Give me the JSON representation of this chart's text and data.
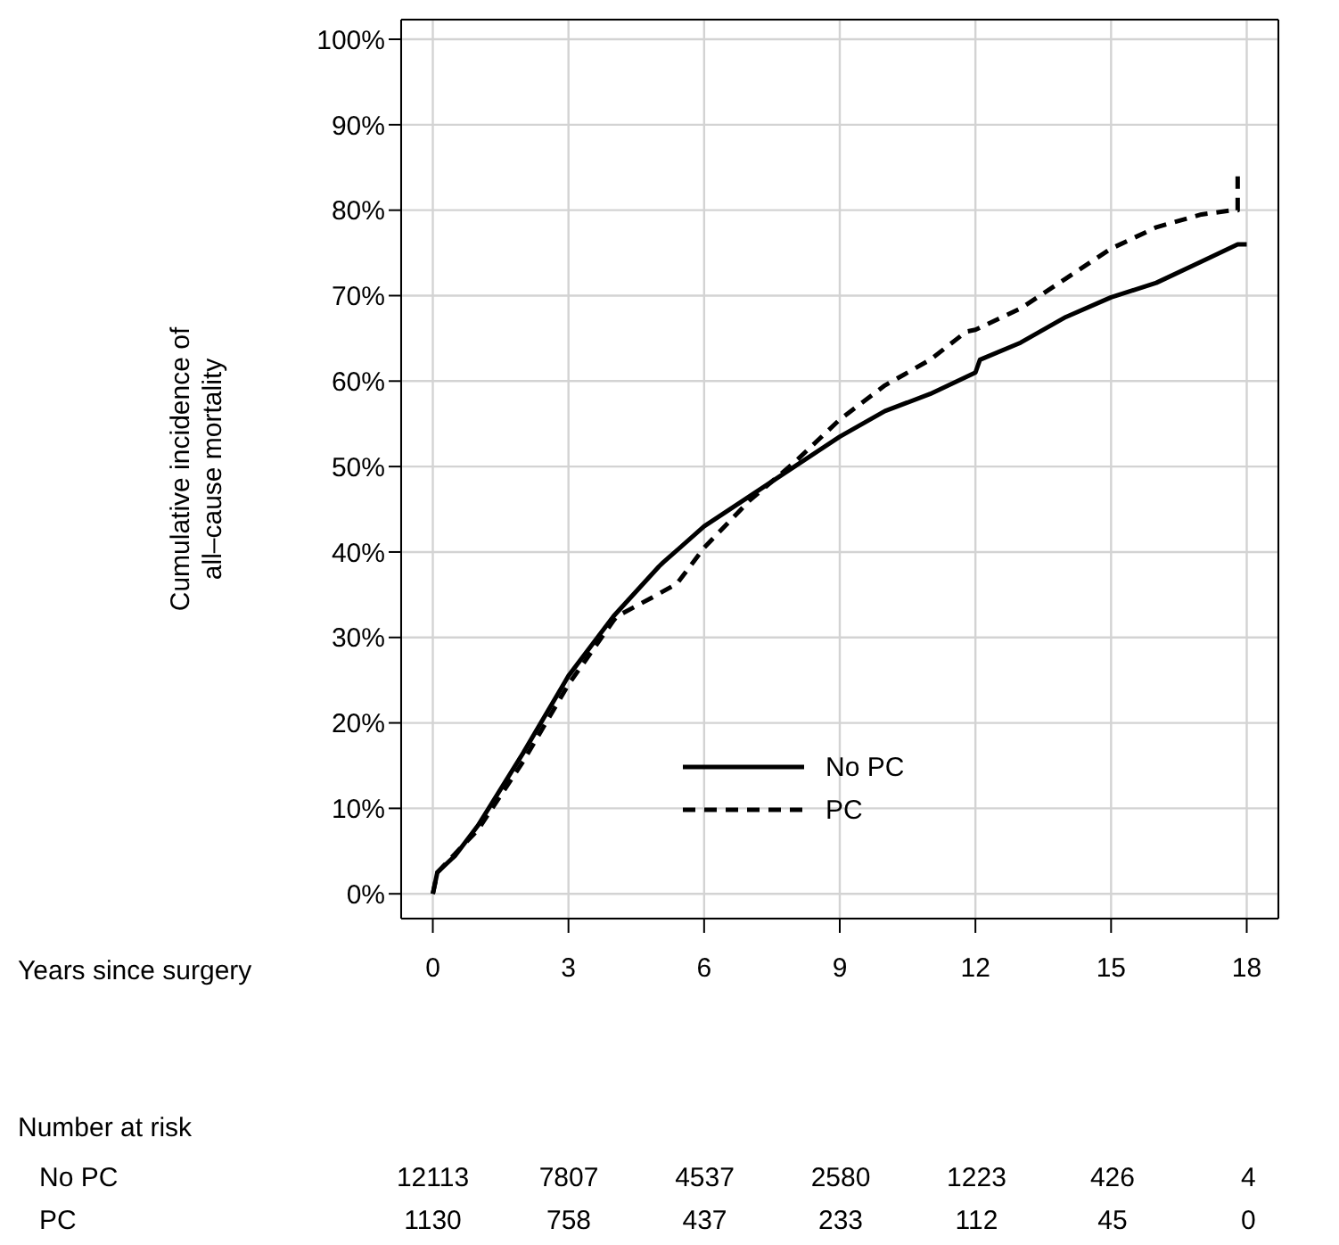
{
  "chart_data": {
    "type": "line",
    "xlabel": "Years since surgery",
    "ylabel": "Cumulative incidence of\nall–cause mortality",
    "xlim": [
      -0.7,
      18.7
    ],
    "xticks": [
      0,
      3,
      6,
      9,
      12,
      15,
      18
    ],
    "ylim": [
      -2.9,
      102.3
    ],
    "yticks": [
      {
        "value": 0,
        "label": "0%"
      },
      {
        "value": 10,
        "label": "10%"
      },
      {
        "value": 20,
        "label": "20%"
      },
      {
        "value": 30,
        "label": "30%"
      },
      {
        "value": 40,
        "label": "40%"
      },
      {
        "value": 50,
        "label": "50%"
      },
      {
        "value": 60,
        "label": "60%"
      },
      {
        "value": 70,
        "label": "70%"
      },
      {
        "value": 80,
        "label": "80%"
      },
      {
        "value": 90,
        "label": "90%"
      },
      {
        "value": 100,
        "label": "100%"
      }
    ],
    "grid": true,
    "legend": "center",
    "series": [
      {
        "name": "No PC",
        "color": "#000000",
        "line_style": "solid",
        "x": [
          0,
          0.1,
          0.5,
          1,
          2,
          3,
          4,
          5,
          5.1,
          6,
          7,
          8,
          9,
          10,
          11,
          12,
          12.1,
          13,
          14,
          15,
          16,
          17,
          17.8,
          18
        ],
        "values": [
          0,
          2.5,
          4.5,
          8,
          16.5,
          25.5,
          32.5,
          38.3,
          38.8,
          43,
          46.5,
          50,
          53.5,
          56.5,
          58.5,
          61,
          62.5,
          64.5,
          67.5,
          69.8,
          71.5,
          74,
          76,
          76
        ]
      },
      {
        "name": "PC",
        "color": "#000000",
        "line_style": "dashed",
        "x": [
          0,
          0.1,
          1,
          2,
          3,
          4,
          4.08,
          4.86,
          5.4,
          6,
          7,
          8,
          9,
          10,
          11,
          11.8,
          12,
          13,
          14,
          15,
          16,
          17,
          17.7,
          17.8,
          17.8
        ],
        "values": [
          0,
          2.5,
          7.5,
          15.5,
          24.5,
          32,
          32.5,
          34.7,
          36.3,
          40.5,
          46,
          50.5,
          55.5,
          59.5,
          62.5,
          65.8,
          66,
          68.5,
          72,
          75.5,
          78,
          79.5,
          80,
          80,
          84
        ]
      }
    ],
    "annotations": [
      "Number at risk",
      "No PC",
      "12113",
      "7807",
      "4537",
      "2580",
      "1223",
      "426",
      "4",
      "PC",
      "1130",
      "758",
      "437",
      "233",
      "112",
      "45",
      "0"
    ]
  }
}
